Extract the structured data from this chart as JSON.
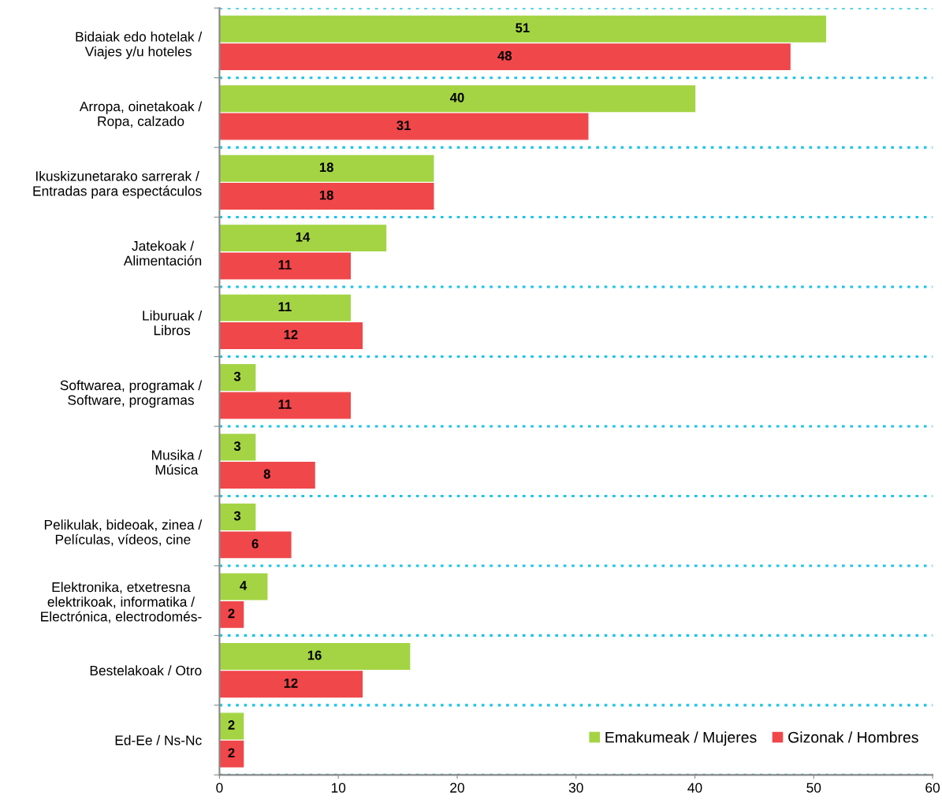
{
  "chart_data": {
    "type": "bar",
    "orientation": "horizontal",
    "categories": [
      "Bidaiak edo hotelak /\nViajes y/u hoteles",
      "Arropa, oinetakoak /\nRopa, calzado",
      "Ikuskizunetarako sarrerak /\nEntradas para espectáculos",
      "Jatekoak /\nAlimentación",
      "Liburuak /\nLibros",
      "Softwarea, programak /\nSoftware, programas",
      "Musika /\nMúsica",
      "Pelikulak, bideoak, zinea /\nPelículas, vídeos, cine",
      "Elektronika, etxetresna\nelektrikoak, informatika /\nElectrónica, electrodomés-",
      "Bestelakoak / Otro",
      "Ed-Ee / Ns-Nc"
    ],
    "series": [
      {
        "name": "Emakumeak / Mujeres",
        "color": "#a4d444",
        "values": [
          51,
          40,
          18,
          14,
          11,
          3,
          3,
          3,
          4,
          16,
          2
        ]
      },
      {
        "name": "Gizonak / Hombres",
        "color": "#f0474a",
        "values": [
          48,
          31,
          18,
          11,
          12,
          11,
          8,
          6,
          2,
          12,
          2
        ]
      }
    ],
    "xlim": [
      0,
      60
    ],
    "xticks": [
      0,
      10,
      20,
      30,
      40,
      50,
      60
    ],
    "data_labels": true,
    "grid": "y",
    "legend": "bottom right"
  }
}
